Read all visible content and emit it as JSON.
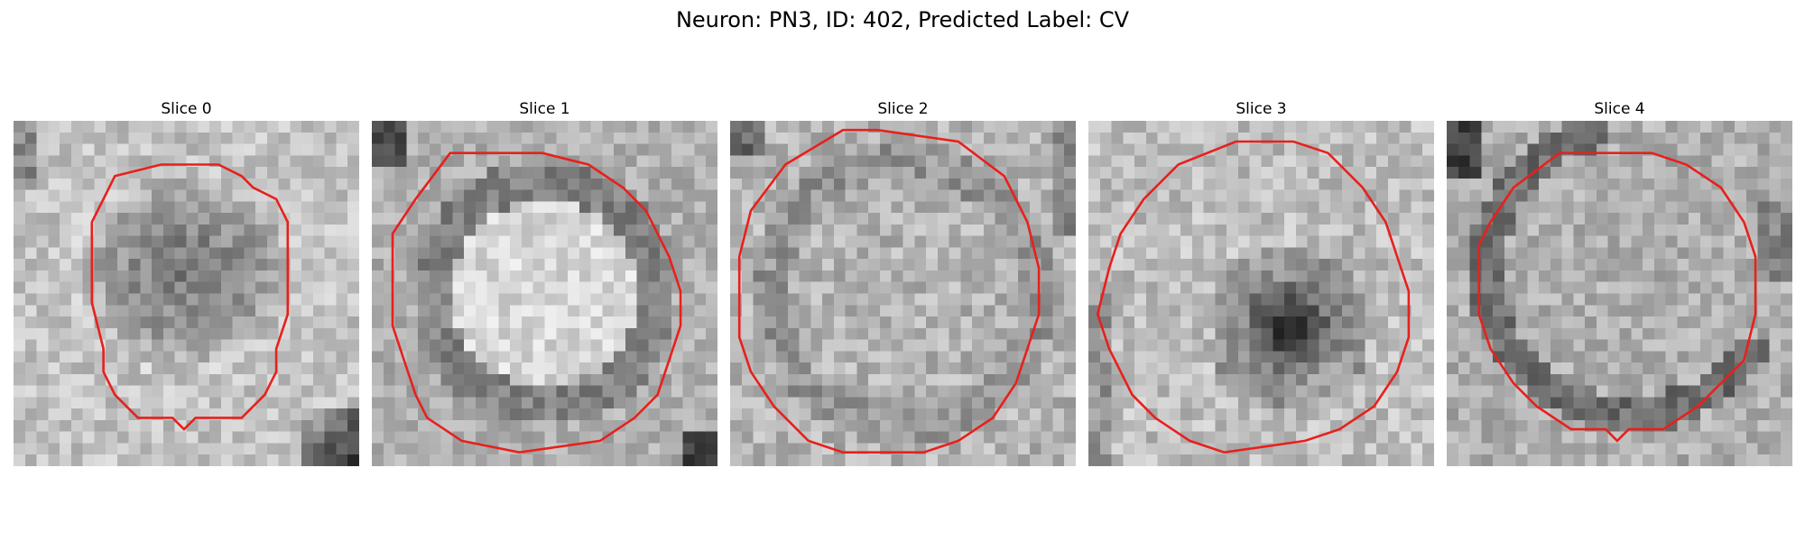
{
  "figure": {
    "title": "Neuron: PN3, ID: 402, Predicted Label: CV",
    "contour_color": "#e8201c",
    "colormap": "grayscale"
  },
  "slices": [
    {
      "title": "Slice 0",
      "roi": "dark-center",
      "contour": "small-oval"
    },
    {
      "title": "Slice 1",
      "roi": "bright-center-dark-ring",
      "contour": "large-polygon"
    },
    {
      "title": "Slice 2",
      "roi": "mottled-gray",
      "contour": "large-polygon"
    },
    {
      "title": "Slice 3",
      "roi": "dark-spot-bottom-right",
      "contour": "large-polygon"
    },
    {
      "title": "Slice 4",
      "roi": "dark-ring-left",
      "contour": "large-polygon"
    }
  ]
}
